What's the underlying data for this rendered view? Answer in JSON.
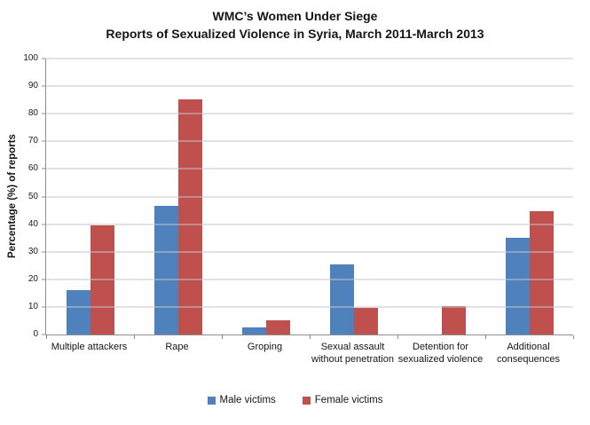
{
  "header": {
    "title_line1": "WMC’s Women Under Siege",
    "title_line2": "Reports of Sexualized Violence in Syria, March 2011-March 2013"
  },
  "chart_data": {
    "type": "bar",
    "title": "WMC’s Women Under Siege",
    "subtitle": "Reports of Sexualized Violence in Syria, March 2011-March 2013",
    "categories": [
      "Multiple attackers",
      "Rape",
      "Groping",
      "Sexual assault without penetration",
      "Detention for sexualized violence",
      "Additional consequences"
    ],
    "series": [
      {
        "name": "Male victims",
        "color": "#4F81BD",
        "values": [
          16,
          46.5,
          2.5,
          25.5,
          0,
          35
        ]
      },
      {
        "name": "Female victims",
        "color": "#C0504D",
        "values": [
          39.7,
          85.3,
          5.3,
          9.7,
          10.3,
          44.7
        ]
      }
    ],
    "xlabel": "",
    "ylabel": "Percentage (%) of reports",
    "ylim": [
      0,
      100
    ],
    "yticks": [
      0,
      10,
      20,
      30,
      40,
      50,
      60,
      70,
      80,
      90,
      100
    ],
    "grid": true,
    "legend_position": "bottom",
    "gridline_color": "#C6C6C6",
    "axis_color": "#8E8E8E"
  }
}
